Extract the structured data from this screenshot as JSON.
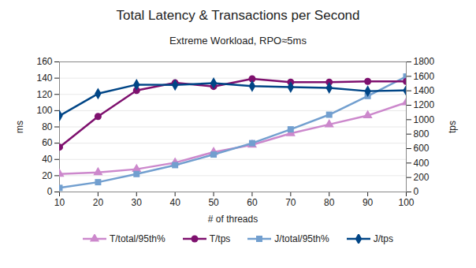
{
  "chart_data": {
    "type": "line",
    "title": "Total Latency & Transactions per Second",
    "subtitle": "Extreme Workload, RPO≈5ms",
    "x_label": "# of threads",
    "y_label": "ms",
    "y2_label": "tps",
    "x": [
      10,
      20,
      30,
      40,
      50,
      60,
      70,
      80,
      90,
      100
    ],
    "xlim": [
      10,
      100
    ],
    "xticks": [
      10,
      20,
      30,
      40,
      50,
      60,
      70,
      80,
      90,
      100
    ],
    "ylim": [
      0,
      160
    ],
    "yticks": [
      0,
      20,
      40,
      60,
      80,
      100,
      120,
      140,
      160
    ],
    "y2lim": [
      0,
      1800
    ],
    "y2ticks": [
      0,
      200,
      400,
      600,
      800,
      1000,
      1200,
      1400,
      1600,
      1800
    ],
    "grid": true,
    "legend": "bottom",
    "series": [
      {
        "name": "T/total/95th%",
        "color": "#cc88cc",
        "marker": "triangle",
        "values": [
          22,
          24,
          28,
          36,
          49,
          58,
          72,
          83,
          94,
          110
        ]
      },
      {
        "name": "T/tps",
        "color": "#7e106e",
        "marker": "circle",
        "axis": "y2",
        "values": [
          620,
          1045,
          1405,
          1510,
          1460,
          1565,
          1520,
          1520,
          1530,
          1530
        ]
      },
      {
        "name": "J/total/95th%",
        "color": "#729fcf",
        "marker": "square",
        "values": [
          5,
          12,
          22,
          33,
          46,
          60,
          77,
          95,
          118,
          142
        ]
      },
      {
        "name": "J/tps",
        "color": "#004586",
        "marker": "diamond",
        "axis": "y2",
        "values": [
          1055,
          1360,
          1485,
          1480,
          1505,
          1465,
          1450,
          1440,
          1395,
          1405
        ]
      }
    ]
  }
}
